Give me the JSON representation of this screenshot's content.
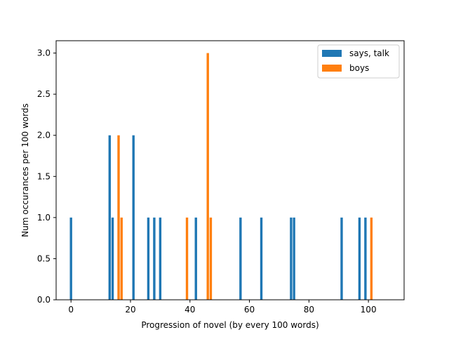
{
  "chart_data": {
    "type": "bar",
    "xlabel": "Progression of novel (by every 100 words)",
    "ylabel": "Num occurances per 100 words",
    "xlim": [
      -5,
      112
    ],
    "ylim": [
      0,
      3.15
    ],
    "xticks": [
      0,
      20,
      40,
      60,
      80,
      100
    ],
    "yticks": [
      0.0,
      0.5,
      1.0,
      1.5,
      2.0,
      2.5,
      3.0
    ],
    "grid": false,
    "legend_position": "top-right",
    "bar_width": 0.8,
    "series": [
      {
        "name": "says, talk",
        "color": "#1f77b4",
        "points": [
          {
            "x": 0,
            "y": 1
          },
          {
            "x": 13,
            "y": 2
          },
          {
            "x": 14,
            "y": 1
          },
          {
            "x": 21,
            "y": 2
          },
          {
            "x": 26,
            "y": 1
          },
          {
            "x": 28,
            "y": 1
          },
          {
            "x": 30,
            "y": 1
          },
          {
            "x": 42,
            "y": 1
          },
          {
            "x": 57,
            "y": 1
          },
          {
            "x": 64,
            "y": 1
          },
          {
            "x": 74,
            "y": 1
          },
          {
            "x": 75,
            "y": 1
          },
          {
            "x": 91,
            "y": 1
          },
          {
            "x": 97,
            "y": 1
          },
          {
            "x": 99,
            "y": 1
          }
        ]
      },
      {
        "name": "boys",
        "color": "#ff7f0e",
        "points": [
          {
            "x": 16,
            "y": 2
          },
          {
            "x": 17,
            "y": 1
          },
          {
            "x": 39,
            "y": 1
          },
          {
            "x": 46,
            "y": 3
          },
          {
            "x": 47,
            "y": 1
          },
          {
            "x": 101,
            "y": 1
          }
        ]
      }
    ]
  }
}
